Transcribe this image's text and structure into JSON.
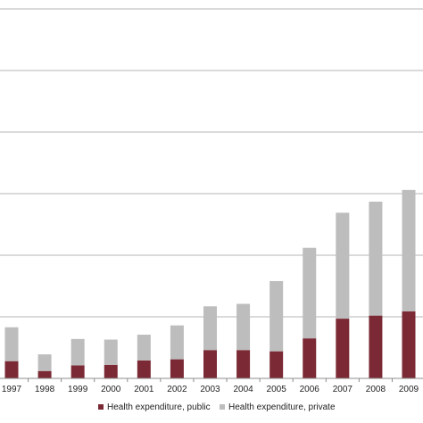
{
  "chart_data": {
    "type": "bar",
    "stacked": true,
    "categories": [
      "1997",
      "1998",
      "1999",
      "2000",
      "2001",
      "2002",
      "2003",
      "2004",
      "2005",
      "2006",
      "2007",
      "2008",
      "2009"
    ],
    "series": [
      {
        "name": "Health expenditure, public",
        "color": "#7b2a35",
        "values": [
          28,
          12,
          21,
          22,
          29,
          31,
          46,
          46,
          44,
          65,
          97,
          102,
          109
        ]
      },
      {
        "name": "Health expenditure, private",
        "color": "#bdbdbd",
        "values": [
          55,
          27,
          43,
          41,
          42,
          55,
          71,
          75,
          114,
          147,
          172,
          185,
          197
        ]
      }
    ],
    "ylim": [
      0,
      600
    ],
    "yticks": [
      0,
      100,
      200,
      300,
      400,
      500,
      600
    ],
    "grid": true,
    "legend_position": "bottom"
  }
}
